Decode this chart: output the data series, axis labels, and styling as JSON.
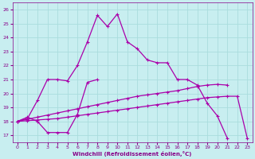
{
  "xlabel": "Windchill (Refroidissement éolien,°C)",
  "background_color": "#c8eef0",
  "grid_color": "#aadddd",
  "line_color": "#aa00aa",
  "xlim": [
    -0.5,
    23.5
  ],
  "ylim": [
    16.5,
    26.5
  ],
  "xticks": [
    0,
    1,
    2,
    3,
    4,
    5,
    6,
    7,
    8,
    9,
    10,
    11,
    12,
    13,
    14,
    15,
    16,
    17,
    18,
    19,
    20,
    21,
    22,
    23
  ],
  "yticks": [
    17,
    18,
    19,
    20,
    21,
    22,
    23,
    24,
    25,
    26
  ],
  "series_peaked": {
    "x": [
      0,
      1,
      2,
      3,
      4,
      5,
      6,
      7,
      8,
      9,
      10,
      11,
      12,
      13,
      14,
      15,
      16,
      17,
      18,
      19,
      20,
      21,
      22,
      23
    ],
    "y": [
      18.0,
      18.2,
      19.5,
      21.0,
      21.0,
      20.9,
      22.0,
      23.7,
      25.6,
      24.8,
      25.7,
      23.7,
      23.2,
      22.4,
      22.2,
      22.2,
      21.0,
      21.0,
      20.6,
      19.3,
      18.4,
      16.8,
      null,
      null
    ]
  },
  "series_upper_straight": {
    "x": [
      0,
      1,
      2,
      3,
      4,
      5,
      6,
      7,
      8,
      9,
      10,
      11,
      12,
      13,
      14,
      15,
      16,
      17,
      18,
      19,
      20,
      21,
      22,
      23
    ],
    "y": [
      18.0,
      18.15,
      18.3,
      18.45,
      18.6,
      18.75,
      18.9,
      19.05,
      19.2,
      19.35,
      19.5,
      19.65,
      19.8,
      19.9,
      20.0,
      20.1,
      20.2,
      20.35,
      20.5,
      20.6,
      20.65,
      20.6,
      null,
      null
    ]
  },
  "series_lower_straight": {
    "x": [
      0,
      1,
      2,
      3,
      4,
      5,
      6,
      7,
      8,
      9,
      10,
      11,
      12,
      13,
      14,
      15,
      16,
      17,
      18,
      19,
      20,
      21,
      22,
      23
    ],
    "y": [
      18.0,
      18.05,
      18.1,
      18.15,
      18.2,
      18.3,
      18.4,
      18.5,
      18.6,
      18.7,
      18.8,
      18.9,
      19.0,
      19.1,
      19.2,
      19.3,
      19.4,
      19.5,
      19.6,
      19.7,
      19.75,
      19.8,
      19.8,
      16.8
    ]
  },
  "series_humped": {
    "x": [
      0,
      1,
      2,
      3,
      4,
      5,
      6,
      7,
      8,
      9,
      10,
      11,
      12,
      13,
      14,
      15,
      16,
      17,
      18,
      19,
      20,
      21,
      22,
      23
    ],
    "y": [
      18.0,
      18.3,
      18.0,
      17.2,
      17.2,
      17.2,
      18.5,
      20.8,
      21.0,
      null,
      null,
      null,
      null,
      null,
      null,
      null,
      null,
      null,
      null,
      null,
      null,
      null,
      null,
      null
    ]
  }
}
